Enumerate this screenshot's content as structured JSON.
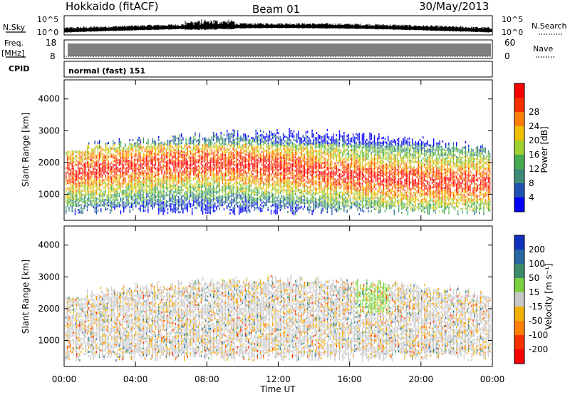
{
  "header": {
    "station": "Hokkaido (fitACF)",
    "beam": "Beam 01",
    "date": "30/May/2013"
  },
  "strips": {
    "nsky_label": "N.Sky",
    "nsky_top": "10^5",
    "nsky_bottom": "10^0",
    "nsearch_label": "N.Search",
    "nsearch_top": "10^5",
    "nsearch_bottom": "10^0",
    "freq_label": "Freq.",
    "freq_unit": "[MHz]",
    "freq_top": "18",
    "freq_bottom": "8",
    "nave_label": "Nave",
    "nave_top": "60",
    "nave_bottom": "0",
    "cpid_label": "CPID",
    "cpid_value": "normal (fast) 151"
  },
  "chart_data": [
    {
      "type": "heatmap",
      "name": "power",
      "ylabel": "Slant Range [km]",
      "ylim": [
        180,
        4600
      ],
      "yticks": [
        "1000",
        "2000",
        "3000",
        "4000"
      ],
      "colorbar_label": "Power [dB]",
      "colorbar_ticks": [
        "4",
        "8",
        "12",
        "16",
        "20",
        "24",
        "28"
      ],
      "colors": [
        "#0000ff",
        "#2050b0",
        "#3c8c78",
        "#46aa50",
        "#a0d030",
        "#f0c000",
        "#ff8000",
        "#ff3000",
        "#ff0000"
      ]
    },
    {
      "type": "heatmap",
      "name": "velocity",
      "ylabel": "Slant Range [km]",
      "ylim": [
        180,
        4600
      ],
      "yticks": [
        "1000",
        "2000",
        "3000",
        "4000"
      ],
      "colorbar_label": "Velocity [m s⁻¹]",
      "colorbar_ticks": [
        "200",
        "100",
        "50",
        "15",
        "-15",
        "-50",
        "-100",
        "-200"
      ],
      "colors": [
        "#1030c0",
        "#2868a0",
        "#3c8c6c",
        "#7cd040",
        "#c8c8c8",
        "#f0b000",
        "#ff8000",
        "#ff3000",
        "#ff0000"
      ]
    }
  ],
  "xaxis": {
    "label": "Time UT",
    "ticks": [
      "00:00",
      "04:00",
      "08:00",
      "12:00",
      "16:00",
      "20:00",
      "00:00"
    ]
  }
}
